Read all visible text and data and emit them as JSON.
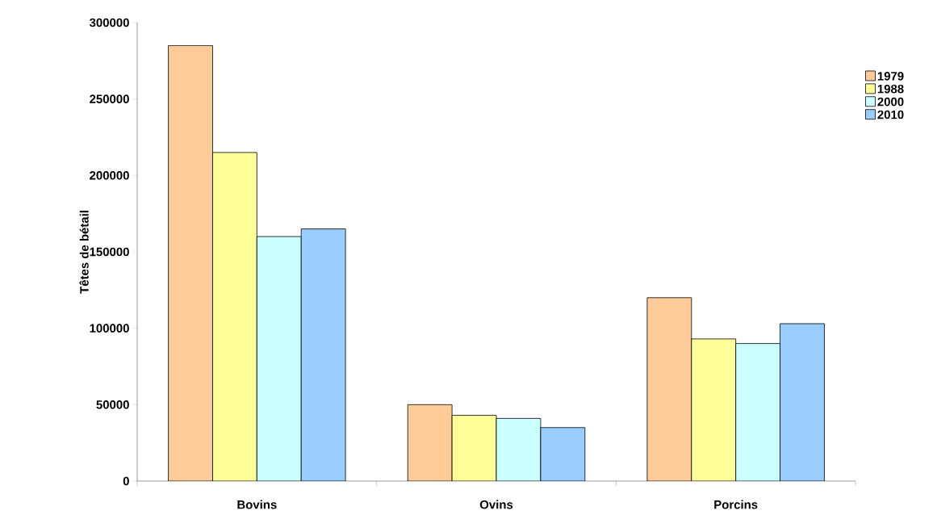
{
  "chart_data": {
    "type": "bar",
    "ylabel": "Têtes de bétail",
    "categories": [
      "Bovins",
      "Ovins",
      "Porcins"
    ],
    "series": [
      {
        "name": "1979",
        "color": "#ffcc99",
        "values": [
          285000,
          50000,
          120000
        ]
      },
      {
        "name": "1988",
        "color": "#ffff99",
        "values": [
          215000,
          43000,
          93000
        ]
      },
      {
        "name": "2000",
        "color": "#ccffff",
        "values": [
          160000,
          41000,
          90000
        ]
      },
      {
        "name": "2010",
        "color": "#99ccff",
        "values": [
          165000,
          35000,
          103000
        ]
      }
    ],
    "ylim": [
      0,
      300000
    ],
    "yticks": [
      0,
      50000,
      100000,
      150000,
      200000,
      250000,
      300000
    ],
    "grid": false,
    "legend": "right"
  }
}
